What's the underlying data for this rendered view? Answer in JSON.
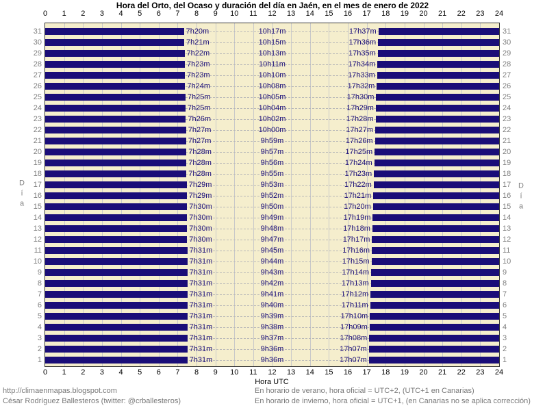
{
  "title": "Hora del Orto, del Ocaso y duración del día en Jaén, en el mes de enero de 2022",
  "axes": {
    "x_label": "Hora UTC",
    "y_label": "Día",
    "x_ticks": [
      0,
      1,
      2,
      3,
      4,
      5,
      6,
      7,
      8,
      9,
      10,
      11,
      12,
      13,
      14,
      15,
      16,
      17,
      18,
      19,
      20,
      21,
      22,
      23,
      24
    ],
    "x_range": [
      0,
      24
    ]
  },
  "footer": {
    "left_line1": "http://climaenmapas.blogspot.com",
    "left_line2": "César Rodríguez Ballesteros (twitter: @crballesteros)",
    "right_line1": "En horario de verano, hora oficial = UTC+2, (UTC+1 en Canarias)",
    "right_line2": "En horario de invierno, hora oficial = UTC+1, (en Canarias no se aplica corrección)"
  },
  "colors": {
    "night": "#1a0d78",
    "daylight": "#f5eecd",
    "grid": "#c9c9c9",
    "row_dash": "#b8b8b8",
    "bar_label": "#1a0d78",
    "day_tick": "#808080",
    "hour_tick": "#000000",
    "border": "#333333"
  },
  "chart_data": {
    "type": "bar",
    "subtype": "horizontal-day-length-gantt",
    "title": "Hora del Orto, del Ocaso y duración del día en Jaén, en el mes de enero de 2022",
    "xlabel": "Hora UTC",
    "ylabel": "Día",
    "xlim": [
      0,
      24
    ],
    "x_tick_step": 1,
    "row_order": "day 31 at top, day 1 at bottom",
    "legend": "night shown as dark bars from 0h to sunrise and sunset to 24h; daylight shown as cream band labeled sunrise / duration / sunset",
    "days": [
      {
        "day": 31,
        "sunrise": "7h20m",
        "daylight": "10h17m",
        "sunset": "17h37m"
      },
      {
        "day": 30,
        "sunrise": "7h21m",
        "daylight": "10h15m",
        "sunset": "17h36m"
      },
      {
        "day": 29,
        "sunrise": "7h22m",
        "daylight": "10h13m",
        "sunset": "17h35m"
      },
      {
        "day": 28,
        "sunrise": "7h23m",
        "daylight": "10h11m",
        "sunset": "17h34m"
      },
      {
        "day": 27,
        "sunrise": "7h23m",
        "daylight": "10h10m",
        "sunset": "17h33m"
      },
      {
        "day": 26,
        "sunrise": "7h24m",
        "daylight": "10h08m",
        "sunset": "17h32m"
      },
      {
        "day": 25,
        "sunrise": "7h25m",
        "daylight": "10h05m",
        "sunset": "17h30m"
      },
      {
        "day": 24,
        "sunrise": "7h25m",
        "daylight": "10h04m",
        "sunset": "17h29m"
      },
      {
        "day": 23,
        "sunrise": "7h26m",
        "daylight": "10h02m",
        "sunset": "17h28m"
      },
      {
        "day": 22,
        "sunrise": "7h27m",
        "daylight": "10h00m",
        "sunset": "17h27m"
      },
      {
        "day": 21,
        "sunrise": "7h27m",
        "daylight": "9h59m",
        "sunset": "17h26m"
      },
      {
        "day": 20,
        "sunrise": "7h28m",
        "daylight": "9h57m",
        "sunset": "17h25m"
      },
      {
        "day": 19,
        "sunrise": "7h28m",
        "daylight": "9h56m",
        "sunset": "17h24m"
      },
      {
        "day": 18,
        "sunrise": "7h28m",
        "daylight": "9h55m",
        "sunset": "17h23m"
      },
      {
        "day": 17,
        "sunrise": "7h29m",
        "daylight": "9h53m",
        "sunset": "17h22m"
      },
      {
        "day": 16,
        "sunrise": "7h29m",
        "daylight": "9h52m",
        "sunset": "17h21m"
      },
      {
        "day": 15,
        "sunrise": "7h30m",
        "daylight": "9h50m",
        "sunset": "17h20m"
      },
      {
        "day": 14,
        "sunrise": "7h30m",
        "daylight": "9h49m",
        "sunset": "17h19m"
      },
      {
        "day": 13,
        "sunrise": "7h30m",
        "daylight": "9h48m",
        "sunset": "17h18m"
      },
      {
        "day": 12,
        "sunrise": "7h30m",
        "daylight": "9h47m",
        "sunset": "17h17m"
      },
      {
        "day": 11,
        "sunrise": "7h31m",
        "daylight": "9h45m",
        "sunset": "17h16m"
      },
      {
        "day": 10,
        "sunrise": "7h31m",
        "daylight": "9h44m",
        "sunset": "17h15m"
      },
      {
        "day": 9,
        "sunrise": "7h31m",
        "daylight": "9h43m",
        "sunset": "17h14m"
      },
      {
        "day": 8,
        "sunrise": "7h31m",
        "daylight": "9h42m",
        "sunset": "17h13m"
      },
      {
        "day": 7,
        "sunrise": "7h31m",
        "daylight": "9h41m",
        "sunset": "17h12m"
      },
      {
        "day": 6,
        "sunrise": "7h31m",
        "daylight": "9h40m",
        "sunset": "17h11m"
      },
      {
        "day": 5,
        "sunrise": "7h31m",
        "daylight": "9h39m",
        "sunset": "17h10m"
      },
      {
        "day": 4,
        "sunrise": "7h31m",
        "daylight": "9h38m",
        "sunset": "17h09m"
      },
      {
        "day": 3,
        "sunrise": "7h31m",
        "daylight": "9h37m",
        "sunset": "17h08m"
      },
      {
        "day": 2,
        "sunrise": "7h31m",
        "daylight": "9h36m",
        "sunset": "17h07m"
      },
      {
        "day": 1,
        "sunrise": "7h31m",
        "daylight": "9h36m",
        "sunset": "17h07m"
      }
    ]
  }
}
